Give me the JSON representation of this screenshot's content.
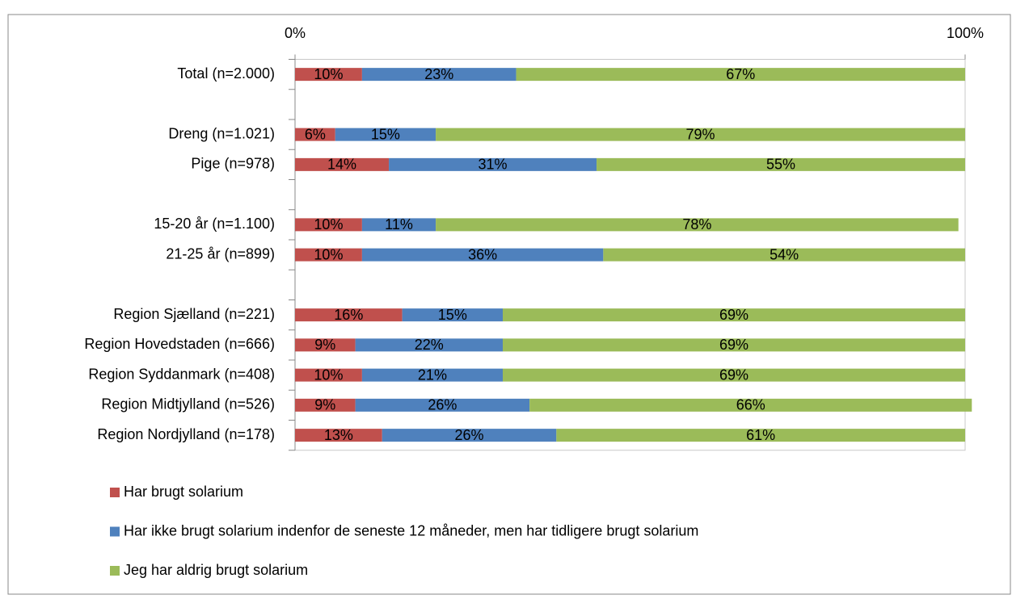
{
  "chart_data": {
    "type": "stacked-bar-horizontal",
    "categories": [
      "Total (n=2.000)",
      null,
      "Dreng (n=1.021)",
      "Pige (n=978)",
      null,
      "15-20 år (n=1.100)",
      "21-25 år (n=899)",
      null,
      "Region Sjælland (n=221)",
      "Region Hovedstaden (n=666)",
      "Region Syddanmark (n=408)",
      "Region Midtjylland (n=526)",
      "Region Nordjylland (n=178)"
    ],
    "series": [
      {
        "name": "Har brugt solarium",
        "color": "#c0504d",
        "values": [
          10,
          null,
          6,
          14,
          null,
          10,
          10,
          null,
          16,
          9,
          10,
          9,
          13
        ],
        "value_labels": [
          "10%",
          null,
          "6%",
          "14%",
          null,
          "10%",
          "10%",
          null,
          "16%",
          "9%",
          "10%",
          "9%",
          "13%"
        ]
      },
      {
        "name": "Har ikke brugt solarium indenfor de seneste 12 måneder, men har tidligere brugt solarium",
        "color": "#4f81bd",
        "values": [
          23,
          null,
          15,
          31,
          null,
          11,
          36,
          null,
          15,
          22,
          21,
          26,
          26
        ],
        "value_labels": [
          "23%",
          null,
          "15%",
          "31%",
          null,
          "11%",
          "36%",
          null,
          "15%",
          "22%",
          "21%",
          "26%",
          "26%"
        ]
      },
      {
        "name": "Jeg har aldrig brugt solarium",
        "color": "#9bbb59",
        "values": [
          67,
          null,
          79,
          55,
          null,
          78,
          54,
          null,
          69,
          69,
          69,
          66,
          61
        ],
        "value_labels": [
          "67%",
          null,
          "79%",
          "55%",
          null,
          "78%",
          "54%",
          null,
          "69%",
          "69%",
          "69%",
          "66%",
          "61%"
        ]
      }
    ],
    "xlim": [
      0,
      100
    ],
    "xticks": [
      {
        "value": 0,
        "label": "0%"
      },
      {
        "value": 100,
        "label": "100%"
      }
    ]
  }
}
